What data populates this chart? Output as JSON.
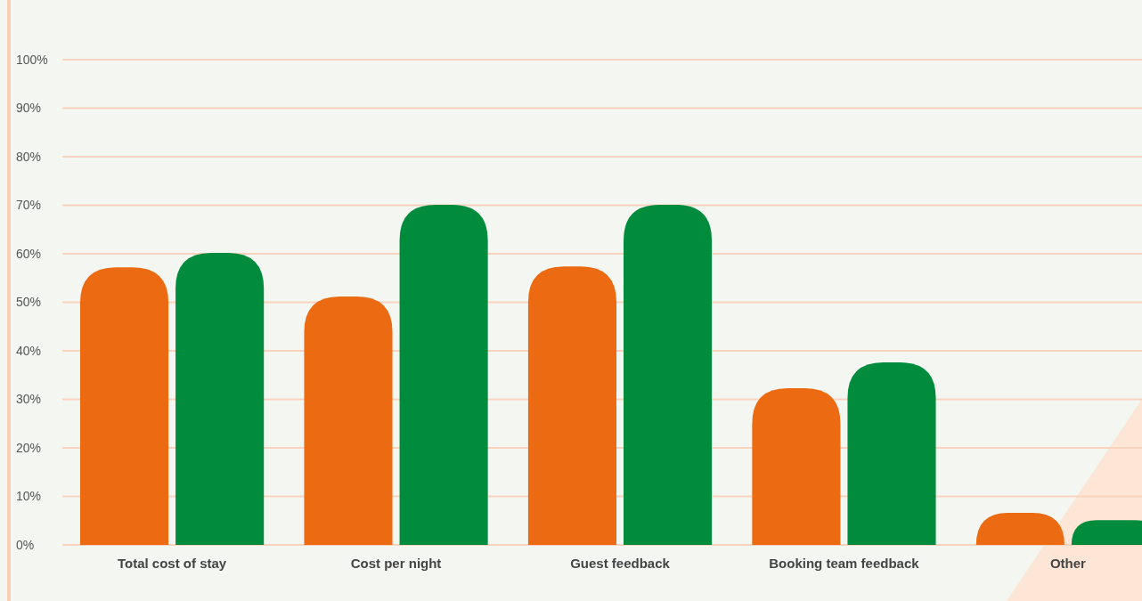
{
  "chart_data": {
    "type": "bar",
    "categories": [
      "Total cost of stay",
      "Cost per night",
      "Guest feedback",
      "Booking team feedback",
      "Other"
    ],
    "series": [
      {
        "color": "#ec6a12",
        "values": [
          57.2,
          51.2,
          57.4,
          32.3,
          6.6
        ]
      },
      {
        "color": "#008c3c",
        "values": [
          60.2,
          70.1,
          70.1,
          37.6,
          5.1
        ]
      }
    ],
    "ylim": [
      0,
      100
    ],
    "yticks": [
      {
        "value": 0,
        "label": "0%"
      },
      {
        "value": 10,
        "label": "10%"
      },
      {
        "value": 20,
        "label": "20%"
      },
      {
        "value": 30,
        "label": "30%"
      },
      {
        "value": 40,
        "label": "40%"
      },
      {
        "value": 50,
        "label": "50%"
      },
      {
        "value": 60,
        "label": "60%"
      },
      {
        "value": 70,
        "label": "70%"
      },
      {
        "value": 80,
        "label": "80%"
      },
      {
        "value": 90,
        "label": "90%"
      },
      {
        "value": 100,
        "label": "100%"
      }
    ],
    "grid": "y"
  }
}
